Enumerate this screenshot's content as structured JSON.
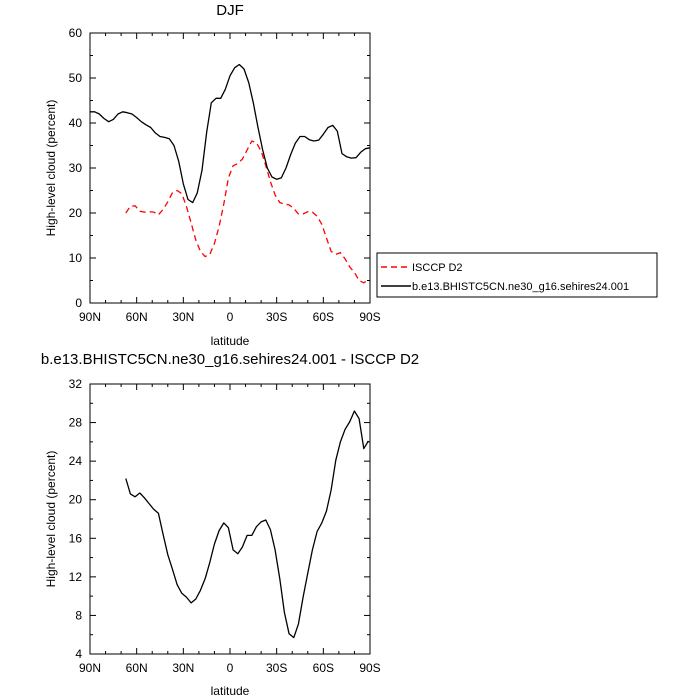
{
  "chart_data": [
    {
      "type": "line",
      "title": "DJF",
      "xlabel": "latitude",
      "ylabel": "High-level cloud (percent)",
      "xlim": [
        90,
        -90
      ],
      "ylim": [
        0,
        60
      ],
      "x_ticks": [
        {
          "value": 90,
          "label": "90N"
        },
        {
          "value": 60,
          "label": "60N"
        },
        {
          "value": 30,
          "label": "30N"
        },
        {
          "value": 0,
          "label": "0"
        },
        {
          "value": -30,
          "label": "30S"
        },
        {
          "value": -60,
          "label": "60S"
        },
        {
          "value": -90,
          "label": "90S"
        }
      ],
      "y_ticks": [
        0,
        10,
        20,
        30,
        40,
        50,
        60
      ],
      "legend": {
        "placement": "right"
      },
      "series": [
        {
          "name": "ISCCP D2",
          "color": "#ff0000",
          "dash": "dashed",
          "x": [
            67,
            64,
            61,
            58,
            55,
            52,
            49,
            46,
            43,
            40,
            37,
            34,
            31,
            28,
            25,
            22,
            19,
            16,
            13,
            10,
            7,
            4,
            1,
            -2,
            -5,
            -8,
            -11,
            -14,
            -17,
            -20,
            -23,
            -26,
            -29,
            -32,
            -35,
            -38,
            -41,
            -44,
            -47,
            -50,
            -53,
            -56,
            -59,
            -62,
            -65,
            -68,
            -71,
            -74,
            -77,
            -80,
            -83,
            -86,
            -89
          ],
          "values": [
            20,
            21.5,
            21.6,
            20.4,
            20.2,
            20.3,
            20.2,
            19.6,
            20.8,
            22.5,
            24.5,
            25,
            24.3,
            21.5,
            17.8,
            14,
            11.5,
            10.3,
            10.8,
            13.2,
            17,
            22,
            27.8,
            30.5,
            31,
            32,
            34,
            36,
            35.6,
            33.8,
            30.5,
            27,
            24,
            22.3,
            22,
            21.8,
            21,
            19.8,
            19.8,
            20.3,
            20.2,
            19.3,
            17.5,
            14.5,
            11.5,
            10.8,
            11.2,
            9.8,
            8,
            6.8,
            5,
            4.5,
            5.2
          ]
        },
        {
          "name": "b.e13.BHISTC5CN.ne30_g16.sehires24.001",
          "color": "#000000",
          "dash": "solid",
          "x": [
            90,
            87,
            84,
            81,
            78,
            75,
            72,
            69,
            66,
            63,
            60,
            57,
            54,
            51,
            48,
            45,
            42,
            39,
            36,
            33,
            30,
            27,
            24,
            21,
            18,
            15,
            12,
            9,
            6,
            3,
            0,
            -3,
            -6,
            -9,
            -12,
            -15,
            -18,
            -21,
            -24,
            -27,
            -30,
            -33,
            -36,
            -39,
            -42,
            -45,
            -48,
            -51,
            -54,
            -57,
            -60,
            -63,
            -66,
            -69,
            -72,
            -75,
            -78,
            -81,
            -84,
            -87,
            -90
          ],
          "values": [
            42.5,
            42.5,
            42,
            41,
            40.3,
            40.8,
            42,
            42.5,
            42.3,
            42,
            41.2,
            40.3,
            39.6,
            39,
            37.8,
            37,
            36.8,
            36.5,
            35,
            31.5,
            26.5,
            23,
            22.3,
            24.5,
            29.5,
            38,
            44.5,
            45.5,
            45.5,
            47.5,
            50.5,
            52.3,
            53,
            52,
            49,
            44.5,
            39,
            34,
            30,
            28,
            27.5,
            27.8,
            30,
            33,
            35.5,
            37,
            37,
            36.3,
            36,
            36.2,
            37.5,
            39,
            39.5,
            38.2,
            33.2,
            32.5,
            32.2,
            32.3,
            33.5,
            34.3,
            34.5
          ]
        }
      ]
    },
    {
      "type": "line",
      "title": "b.e13.BHISTC5CN.ne30_g16.sehires24.001 - ISCCP D2",
      "xlabel": "latitude",
      "ylabel": "High-level cloud (percent)",
      "xlim": [
        90,
        -90
      ],
      "ylim": [
        4,
        32
      ],
      "x_ticks": [
        {
          "value": 90,
          "label": "90N"
        },
        {
          "value": 60,
          "label": "60N"
        },
        {
          "value": 30,
          "label": "30N"
        },
        {
          "value": 0,
          "label": "0"
        },
        {
          "value": -30,
          "label": "30S"
        },
        {
          "value": -60,
          "label": "60S"
        },
        {
          "value": -90,
          "label": "90S"
        }
      ],
      "y_ticks": [
        4,
        8,
        12,
        16,
        20,
        24,
        28,
        32
      ],
      "series": [
        {
          "color": "#000000",
          "dash": "solid",
          "x": [
            67,
            64,
            61,
            58,
            55,
            52,
            49,
            46,
            43,
            40,
            37,
            34,
            31,
            28,
            25,
            22,
            19,
            16,
            13,
            10,
            7,
            4,
            1,
            -2,
            -5,
            -8,
            -11,
            -14,
            -17,
            -20,
            -23,
            -26,
            -29,
            -32,
            -35,
            -38,
            -41,
            -44,
            -47,
            -50,
            -53,
            -56,
            -59,
            -62,
            -65,
            -68,
            -71,
            -74,
            -77,
            -80,
            -83,
            -86,
            -89
          ],
          "values": [
            22.2,
            20.6,
            20.3,
            20.7,
            20.2,
            19.6,
            19,
            18.6,
            16.4,
            14.3,
            12.8,
            11.2,
            10.3,
            9.9,
            9.3,
            9.7,
            10.6,
            11.8,
            13.5,
            15.4,
            16.8,
            17.6,
            17.1,
            14.8,
            14.4,
            15.1,
            16.3,
            16.3,
            17.2,
            17.7,
            17.9,
            16.9,
            14.8,
            11.8,
            8.3,
            6.1,
            5.7,
            7.1,
            9.9,
            12.4,
            14.8,
            16.7,
            17.6,
            18.8,
            21,
            24.1,
            26,
            27.3,
            28.1,
            29.2,
            28.4,
            25.3,
            26.1
          ]
        }
      ]
    }
  ]
}
